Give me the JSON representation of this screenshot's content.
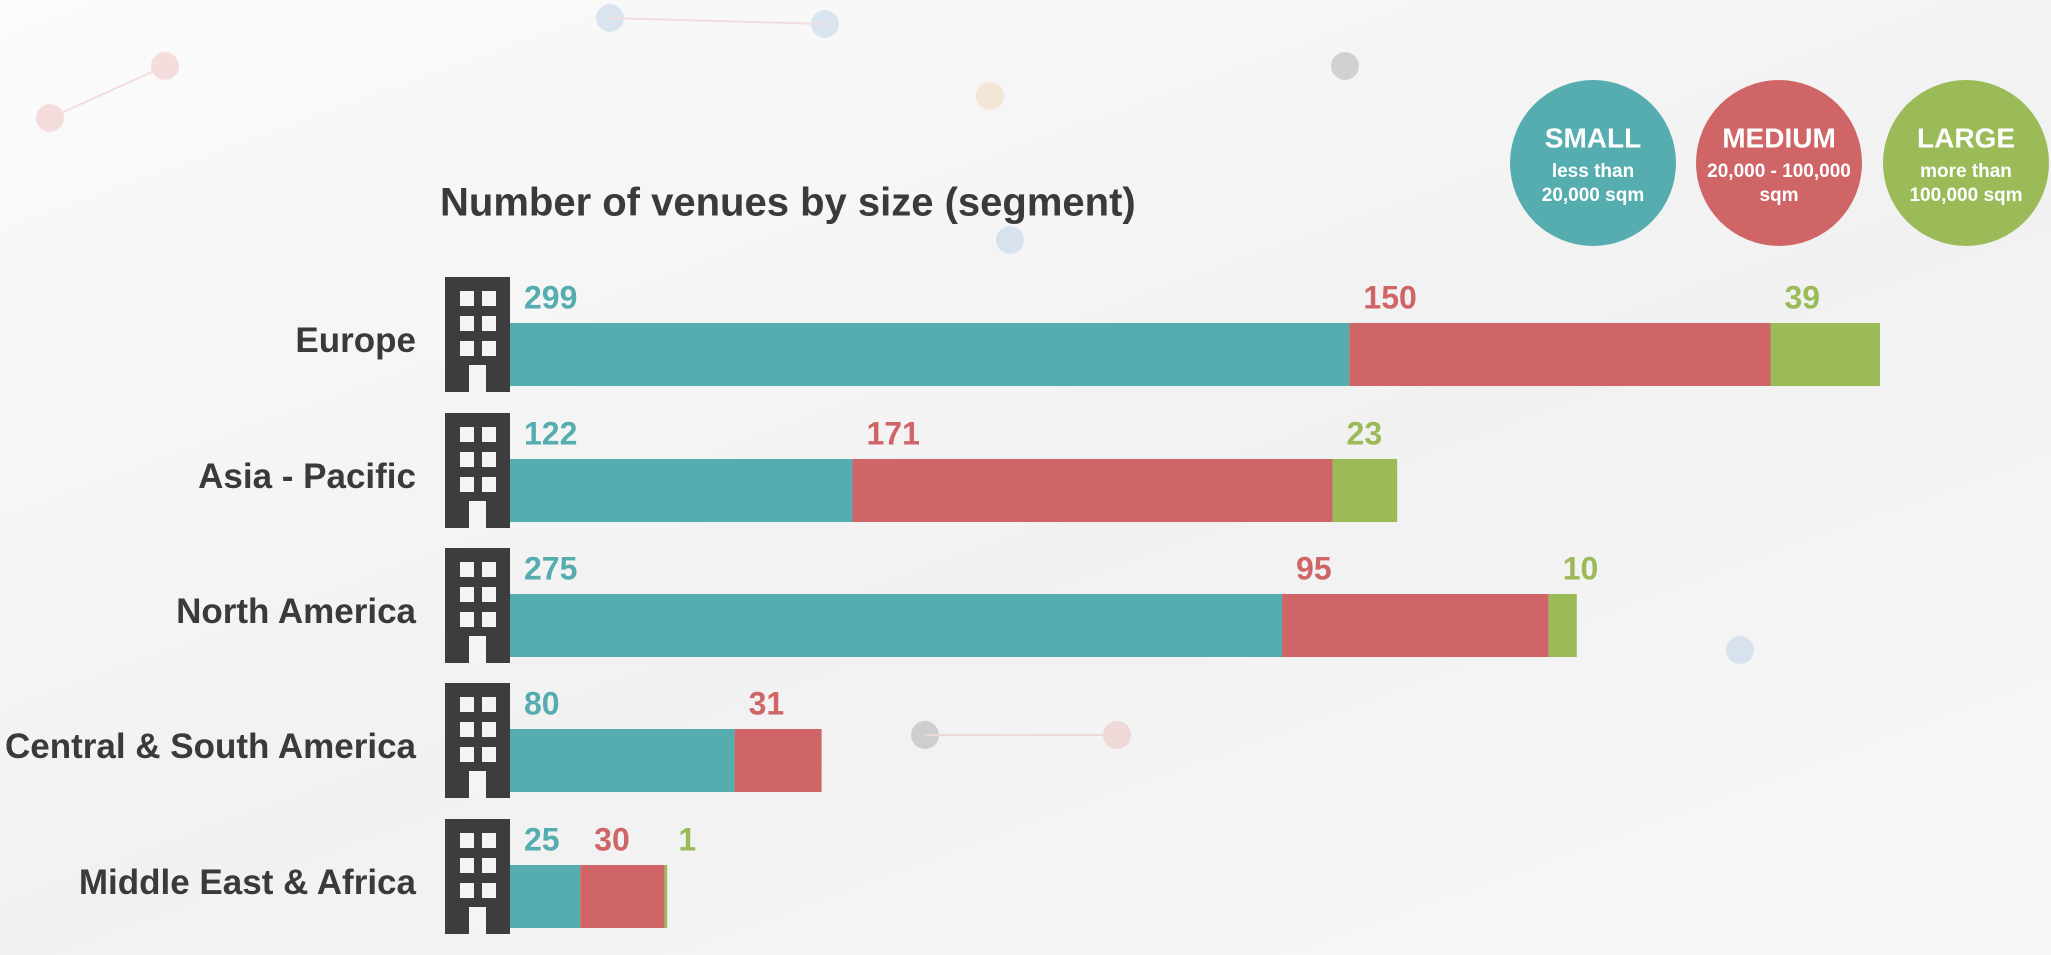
{
  "chart_data": {
    "type": "stacked-bar-horizontal",
    "title": "Number of venues by size (segment)",
    "categories": [
      "Europe",
      "Asia - Pacific",
      "North America",
      "Central & South America",
      "Middle East & Africa"
    ],
    "series": [
      {
        "name": "SMALL",
        "description": [
          "less than",
          "20,000 sqm"
        ],
        "color": "#55adb0",
        "values": [
          299,
          122,
          275,
          80,
          25
        ]
      },
      {
        "name": "MEDIUM",
        "description": [
          "20,000 - 100,000",
          "sqm"
        ],
        "color": "#cf6567",
        "values": [
          150,
          171,
          95,
          31,
          30
        ]
      },
      {
        "name": "LARGE",
        "description": [
          "more than",
          "100,000 sqm"
        ],
        "color": "#9bbb59",
        "values": [
          39,
          23,
          10,
          null,
          1
        ]
      }
    ]
  }
}
